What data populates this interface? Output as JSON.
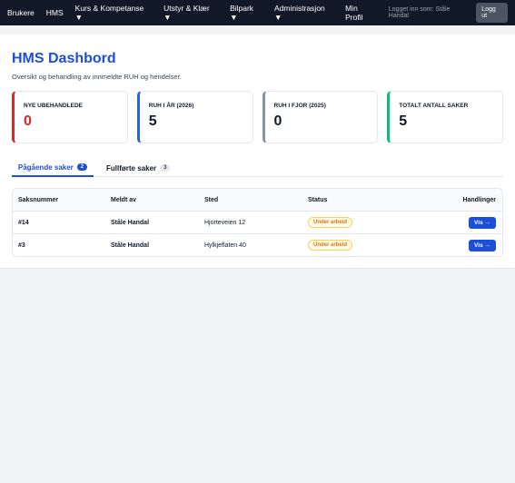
{
  "nav": {
    "items": [
      "Brukere",
      "HMS",
      "Kurs & Kompetanse ▼",
      "Utstyr & Klær ▼",
      "Bilpark ▼",
      "Administrasjon ▼",
      "Min Profil"
    ],
    "logged_in": "Logget inn som: Ståle Handal",
    "logout": "Logg ut"
  },
  "header": {
    "title": "HMS Dashbord",
    "subtitle": "Oversikt og behandling av innmeldte RUH og hendelser."
  },
  "stats": [
    {
      "label": "NYE UBEHANDLEDE",
      "value": 0
    },
    {
      "label": "RUH I ÅR (2026)",
      "value": 5
    },
    {
      "label": "RUH I FJOR (2025)",
      "value": 0
    },
    {
      "label": "TOTALT ANTALL SAKER",
      "value": 5
    }
  ],
  "tabs": [
    {
      "label": "Pågående saker",
      "count": 2
    },
    {
      "label": "Fullførte saker",
      "count": 3
    }
  ],
  "table": {
    "columns": [
      "Saksnummer",
      "Meldt av",
      "Sted",
      "Status",
      "Handlinger"
    ],
    "rows": [
      [
        "#14",
        "Ståle Handal",
        "Hjorteveien 12",
        "Under arbeid",
        "Vis →"
      ],
      [
        "#3",
        "Ståle Handal",
        "Hylkjeflaten 40",
        "Under arbeid",
        "Vis →"
      ]
    ]
  }
}
